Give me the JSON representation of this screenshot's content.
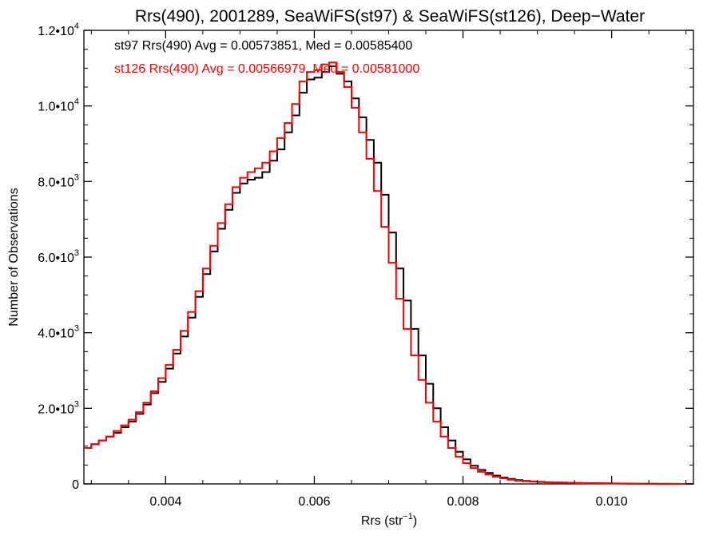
{
  "chart_data": {
    "type": "line",
    "title": "Rrs(490), 2001289, SeaWiFS(st97) & SeaWiFS(st126), Deep−Water",
    "xlabel": "Rrs (str",
    "xlabel_sup": "−1",
    "xlabel_close": ")",
    "ylabel": "Number of Observations",
    "xlim": [
      0.0029,
      0.0111
    ],
    "ylim": [
      0,
      12000
    ],
    "xticks": [
      0.004,
      0.006,
      0.008,
      0.01
    ],
    "xtick_labels": [
      "0.004",
      "0.006",
      "0.008",
      "0.010"
    ],
    "yticks": [
      0,
      2000,
      4000,
      6000,
      8000,
      10000,
      12000
    ],
    "ytick_labels": [
      {
        "base": "0",
        "exp": ""
      },
      {
        "base": "2.0•10",
        "exp": "3"
      },
      {
        "base": "4.0•10",
        "exp": "3"
      },
      {
        "base": "6.0•10",
        "exp": "3"
      },
      {
        "base": "8.0•10",
        "exp": "3"
      },
      {
        "base": "1.0•10",
        "exp": "4"
      },
      {
        "base": "1.2•10",
        "exp": "4"
      }
    ],
    "grid": false,
    "legend_position": "top-left",
    "series": [
      {
        "name": "st97",
        "color": "#000000",
        "annotation": "st97 Rrs(490) Avg = 0.00573851, Med = 0.00585400",
        "x": [
          0.0029,
          0.003,
          0.0031,
          0.0032,
          0.0033,
          0.0034,
          0.0035,
          0.0036,
          0.0037,
          0.0038,
          0.0039,
          0.004,
          0.0041,
          0.0042,
          0.0043,
          0.0044,
          0.0045,
          0.0046,
          0.0047,
          0.0048,
          0.0049,
          0.005,
          0.0051,
          0.0052,
          0.0053,
          0.0054,
          0.0055,
          0.0056,
          0.0057,
          0.0058,
          0.0059,
          0.006,
          0.0061,
          0.0062,
          0.0063,
          0.0064,
          0.0065,
          0.0066,
          0.0067,
          0.0068,
          0.0069,
          0.007,
          0.0071,
          0.0072,
          0.0073,
          0.0074,
          0.0075,
          0.0076,
          0.0077,
          0.0078,
          0.0079,
          0.008,
          0.0081,
          0.0082,
          0.0083,
          0.0084,
          0.0085,
          0.0086,
          0.0087,
          0.0088,
          0.0089,
          0.009,
          0.0091,
          0.0092,
          0.0093,
          0.0094,
          0.0095,
          0.0096,
          0.0097,
          0.0098,
          0.0099,
          0.01,
          0.0101,
          0.0102,
          0.0103,
          0.0104,
          0.0105,
          0.0106,
          0.0107,
          0.0108,
          0.0109,
          0.011,
          0.0111
        ],
        "y": [
          950,
          1050,
          1150,
          1250,
          1350,
          1500,
          1650,
          1850,
          2100,
          2400,
          2700,
          3050,
          3450,
          3900,
          4400,
          4950,
          5550,
          6150,
          6750,
          7250,
          7700,
          7950,
          8050,
          8100,
          8250,
          8550,
          8850,
          9300,
          9750,
          10350,
          10700,
          10750,
          10900,
          11050,
          10850,
          10650,
          10200,
          9700,
          9100,
          8500,
          7650,
          6650,
          5700,
          4850,
          4100,
          3400,
          2650,
          2000,
          1500,
          1150,
          850,
          650,
          480,
          370,
          290,
          220,
          170,
          130,
          100,
          80,
          65,
          55,
          45,
          40,
          35,
          30,
          25,
          22,
          20,
          18,
          15,
          12,
          10,
          8,
          6,
          5,
          4,
          3,
          2,
          2,
          1,
          1,
          0
        ]
      },
      {
        "name": "st126",
        "color": "#ff0000",
        "annotation": "st126 Rrs(490) Avg = 0.00566979, Med = 0.00581000",
        "x": [
          0.0029,
          0.003,
          0.0031,
          0.0032,
          0.0033,
          0.0034,
          0.0035,
          0.0036,
          0.0037,
          0.0038,
          0.0039,
          0.004,
          0.0041,
          0.0042,
          0.0043,
          0.0044,
          0.0045,
          0.0046,
          0.0047,
          0.0048,
          0.0049,
          0.005,
          0.0051,
          0.0052,
          0.0053,
          0.0054,
          0.0055,
          0.0056,
          0.0057,
          0.0058,
          0.0059,
          0.006,
          0.0061,
          0.0062,
          0.0063,
          0.0064,
          0.0065,
          0.0066,
          0.0067,
          0.0068,
          0.0069,
          0.007,
          0.0071,
          0.0072,
          0.0073,
          0.0074,
          0.0075,
          0.0076,
          0.0077,
          0.0078,
          0.0079,
          0.008,
          0.0081,
          0.0082,
          0.0083,
          0.0084,
          0.0085,
          0.0086,
          0.0087,
          0.0088,
          0.0089,
          0.009,
          0.0091,
          0.0092,
          0.0093,
          0.0094,
          0.0095,
          0.0096,
          0.0097,
          0.0098,
          0.0099,
          0.01,
          0.0101,
          0.0102,
          0.0103,
          0.0104,
          0.0105,
          0.0106,
          0.0107,
          0.0108,
          0.0109,
          0.011,
          0.0111
        ],
        "y": [
          950,
          1050,
          1150,
          1250,
          1400,
          1550,
          1700,
          1900,
          2150,
          2450,
          2800,
          3150,
          3550,
          4050,
          4550,
          5100,
          5700,
          6300,
          6900,
          7400,
          7850,
          8100,
          8250,
          8350,
          8500,
          8800,
          9150,
          9550,
          10050,
          10650,
          10900,
          10950,
          11100,
          11150,
          10900,
          10500,
          9950,
          9300,
          8600,
          7750,
          6800,
          5850,
          4900,
          4100,
          3400,
          2750,
          2150,
          1650,
          1250,
          950,
          720,
          550,
          420,
          320,
          250,
          190,
          145,
          110,
          85,
          70,
          58,
          48,
          40,
          35,
          30,
          26,
          22,
          19,
          17,
          15,
          12,
          10,
          8,
          6,
          5,
          4,
          3,
          2,
          2,
          1,
          1,
          0,
          0
        ]
      }
    ]
  }
}
